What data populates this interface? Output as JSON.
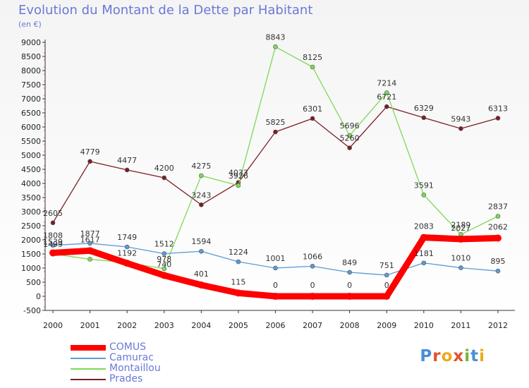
{
  "title": "Evolution du Montant de la Dette par Habitant",
  "subtitle": "(en €)",
  "logo": {
    "text": "Proxiti",
    "letters": [
      {
        "char": "P",
        "color": "#4a8fd6"
      },
      {
        "char": "r",
        "color": "#e0532f"
      },
      {
        "char": "o",
        "color": "#f0a81c"
      },
      {
        "char": "x",
        "color": "#e0532f"
      },
      {
        "char": "i",
        "color": "#74b53a"
      },
      {
        "char": "t",
        "color": "#4a8fd6"
      },
      {
        "char": "i",
        "color": "#f0a81c"
      }
    ]
  },
  "chart_data": {
    "type": "line",
    "title": "Evolution du Montant de la Dette par Habitant",
    "subtitle": "(en €)",
    "x": [
      "2000",
      "2001",
      "2002",
      "2003",
      "2004",
      "2005",
      "2006",
      "2007",
      "2008",
      "2009",
      "2010",
      "2011",
      "2012"
    ],
    "ylim": [
      -500,
      9000
    ],
    "yticks": [
      -500,
      0,
      500,
      1000,
      1500,
      2000,
      2500,
      3000,
      3500,
      4000,
      4500,
      5000,
      5500,
      6000,
      6500,
      7000,
      7500,
      8000,
      8500,
      9000
    ],
    "grid": false,
    "legend": "bottom-left",
    "series": [
      {
        "name": "Prades",
        "color": "#7a1e26",
        "values": [
          2605,
          4779,
          4477,
          4200,
          3243,
          4033,
          5825,
          6301,
          5260,
          6721,
          6329,
          5943,
          6313
        ]
      },
      {
        "name": "Montaillou",
        "color": "#7ed957",
        "values": [
          1499,
          1314,
          1192,
          978,
          4275,
          3926,
          8843,
          8125,
          5696,
          7214,
          3591,
          2189,
          2837
        ]
      },
      {
        "name": "Camurac",
        "color": "#5b9bd5",
        "values": [
          1808,
          1877,
          1749,
          1512,
          1594,
          1224,
          1001,
          1066,
          849,
          751,
          1181,
          1010,
          895
        ]
      },
      {
        "name": "COMUS",
        "color": "#ff0000",
        "values": [
          1539,
          1617,
          1172,
          740,
          401,
          115,
          0,
          0,
          0,
          0,
          2083,
          2027,
          2062
        ]
      }
    ],
    "labels": {
      "Prades": [
        "2605",
        "4779",
        "4477",
        "4200",
        "3243",
        "4033",
        "5825",
        "6301",
        "5260",
        "6721",
        "6329",
        "5943",
        "6313"
      ],
      "Montaillou": [
        "1499",
        "",
        "1192",
        "978",
        "4275",
        "3926",
        "8843",
        "8125",
        "5696",
        "7214",
        "3591",
        "2189",
        "2837"
      ],
      "Camurac": [
        "1808",
        "1877",
        "1749",
        "1512",
        "1594",
        "1224",
        "1001",
        "1066",
        "849",
        "751",
        "1181",
        "1010",
        "895"
      ],
      "COMUS": [
        "1539",
        "1617",
        "",
        "740",
        "401",
        "115",
        "0",
        "0",
        "0",
        "0",
        "2083",
        "2027",
        "2062"
      ]
    }
  },
  "legend": [
    {
      "name": "COMUS",
      "color": "#ff0000",
      "thick": true
    },
    {
      "name": "Camurac",
      "color": "#5b9bd5",
      "thick": false
    },
    {
      "name": "Montaillou",
      "color": "#7ed957",
      "thick": false
    },
    {
      "name": "Prades",
      "color": "#7a1e26",
      "thick": false
    }
  ]
}
